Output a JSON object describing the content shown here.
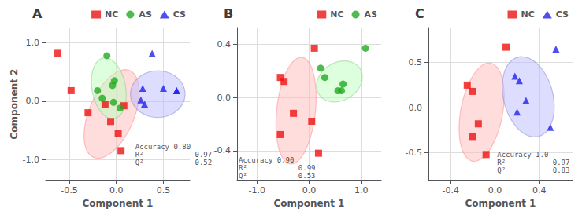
{
  "chart_data": [
    {
      "type": "scatter",
      "title": "A",
      "xlabel": "Component 1",
      "ylabel": "Component 2",
      "xlim": [
        -0.75,
        0.78
      ],
      "ylim": [
        -1.35,
        1.25
      ],
      "xticks": [
        -0.5,
        {
          "value": 0.0,
          "label": "0.0"
        },
        0.5
      ],
      "yticks": [
        {
          "value": -1.0,
          "label": "-1.0"
        },
        {
          "value": 0.0,
          "label": "0.0"
        },
        {
          "value": 1.0,
          "label": "1.0"
        }
      ],
      "grid": true,
      "legend": "top",
      "series": [
        {
          "name": "NC",
          "color": "#ee1111",
          "marker": "square",
          "values": [
            [
              -0.62,
              0.82
            ],
            [
              -0.48,
              0.18
            ],
            [
              -0.3,
              -0.2
            ],
            [
              -0.12,
              -0.05
            ],
            [
              -0.06,
              -0.35
            ],
            [
              0.02,
              -0.55
            ],
            [
              0.05,
              -0.85
            ],
            [
              0.08,
              -0.08
            ]
          ],
          "ellipse": {
            "cx": -0.05,
            "cy": -0.22,
            "width": 0.5,
            "height": 1.55,
            "angle": -12,
            "color": "#ffbbbb",
            "edge_color": "#ff8888"
          }
        },
        {
          "name": "AS",
          "color": "#22aa22",
          "marker": "circle",
          "values": [
            [
              -0.1,
              0.78
            ],
            [
              -0.02,
              0.35
            ],
            [
              -0.04,
              0.27
            ],
            [
              -0.15,
              0.05
            ],
            [
              -0.03,
              -0.02
            ],
            [
              0.04,
              -0.12
            ],
            [
              -0.2,
              0.18
            ]
          ],
          "ellipse": {
            "cx": -0.08,
            "cy": 0.22,
            "width": 0.36,
            "height": 1.05,
            "angle": 5,
            "color": "#bbffbb",
            "edge_color": "#88cc88"
          }
        },
        {
          "name": "CS",
          "color": "#2222ee",
          "marker": "triangle",
          "values": [
            [
              0.38,
              0.82
            ],
            [
              0.28,
              0.22
            ],
            [
              0.5,
              0.22
            ],
            [
              0.64,
              0.18
            ],
            [
              0.26,
              0.02
            ],
            [
              0.3,
              -0.05
            ],
            [
              0.64,
              0.18
            ]
          ],
          "ellipse": {
            "cx": 0.44,
            "cy": 0.12,
            "width": 0.58,
            "height": 0.8,
            "angle": 0,
            "color": "#bbbbff",
            "edge_color": "#8888cc"
          }
        }
      ],
      "annotations": [
        {
          "text": "Accuracy 0.80\nR²            0.97\nQ²            0.52",
          "x": 0.2,
          "y": -0.72
        }
      ]
    },
    {
      "type": "scatter",
      "title": "B",
      "xlabel": "Component 1",
      "xlim": [
        -1.38,
        1.38
      ],
      "ylim": [
        -0.62,
        0.52
      ],
      "xticks": [
        {
          "value": -1.0,
          "label": "-1.0"
        },
        {
          "value": 0.0,
          "label": "0.0"
        },
        {
          "value": 1.0,
          "label": "1.0"
        }
      ],
      "yticks": [
        -0.4,
        {
          "value": 0.0,
          "label": "0.0"
        },
        0.4
      ],
      "grid": true,
      "legend": "top",
      "series": [
        {
          "name": "NC",
          "color": "#ee1111",
          "marker": "square",
          "values": [
            [
              0.1,
              0.37
            ],
            [
              -0.55,
              0.15
            ],
            [
              -0.48,
              0.12
            ],
            [
              -0.3,
              -0.12
            ],
            [
              -0.55,
              -0.28
            ],
            [
              0.05,
              -0.18
            ],
            [
              0.18,
              -0.42
            ]
          ],
          "ellipse": {
            "cx": -0.25,
            "cy": -0.1,
            "width": 0.68,
            "height": 0.88,
            "angle": -40,
            "color": "#ffbbbb",
            "edge_color": "#ff8888"
          }
        },
        {
          "name": "AS",
          "color": "#22aa22",
          "marker": "circle",
          "values": [
            [
              1.08,
              0.37
            ],
            [
              0.22,
              0.22
            ],
            [
              0.3,
              0.15
            ],
            [
              0.65,
              0.1
            ],
            [
              0.62,
              0.05
            ],
            [
              0.55,
              0.05
            ]
          ],
          "ellipse": {
            "cx": 0.58,
            "cy": 0.12,
            "width": 0.88,
            "height": 0.3,
            "angle": 5,
            "color": "#bbffbb",
            "edge_color": "#88cc88"
          }
        }
      ],
      "annotations": [
        {
          "text": "Accuracy 0.90\nR²            0.99\nQ²            0.53",
          "x": -1.35,
          "y": -0.44
        }
      ]
    },
    {
      "type": "scatter",
      "title": "C",
      "xlabel": "Component 1",
      "xlim": [
        -0.6,
        0.7
      ],
      "ylim": [
        -0.8,
        0.88
      ],
      "xticks": [
        -0.4,
        {
          "value": 0.0,
          "label": "0.0"
        },
        0.4
      ],
      "yticks": [
        -0.5,
        {
          "value": 0.0,
          "label": "0.0"
        },
        0.5
      ],
      "grid": true,
      "legend": "top",
      "series": [
        {
          "name": "NC",
          "color": "#ee1111",
          "marker": "square",
          "values": [
            [
              0.1,
              0.67
            ],
            [
              -0.25,
              0.25
            ],
            [
              -0.2,
              0.18
            ],
            [
              -0.15,
              -0.18
            ],
            [
              -0.2,
              -0.32
            ],
            [
              -0.08,
              -0.52
            ]
          ],
          "ellipse": {
            "cx": -0.12,
            "cy": -0.05,
            "width": 0.38,
            "height": 1.1,
            "angle": -8,
            "color": "#ffbbbb",
            "edge_color": "#ff8888"
          }
        },
        {
          "name": "CS",
          "color": "#2222ee",
          "marker": "triangle",
          "values": [
            [
              0.55,
              0.65
            ],
            [
              0.18,
              0.35
            ],
            [
              0.22,
              0.3
            ],
            [
              0.28,
              0.08
            ],
            [
              0.2,
              -0.05
            ],
            [
              0.5,
              -0.22
            ]
          ],
          "ellipse": {
            "cx": 0.3,
            "cy": 0.12,
            "width": 0.45,
            "height": 0.9,
            "angle": 10,
            "color": "#bbbbff",
            "edge_color": "#8888cc"
          }
        }
      ],
      "annotations": [
        {
          "text": "Accuracy 1.0\nR²           0.97\nQ²           0.83",
          "x": 0.02,
          "y": -0.48
        }
      ]
    }
  ]
}
